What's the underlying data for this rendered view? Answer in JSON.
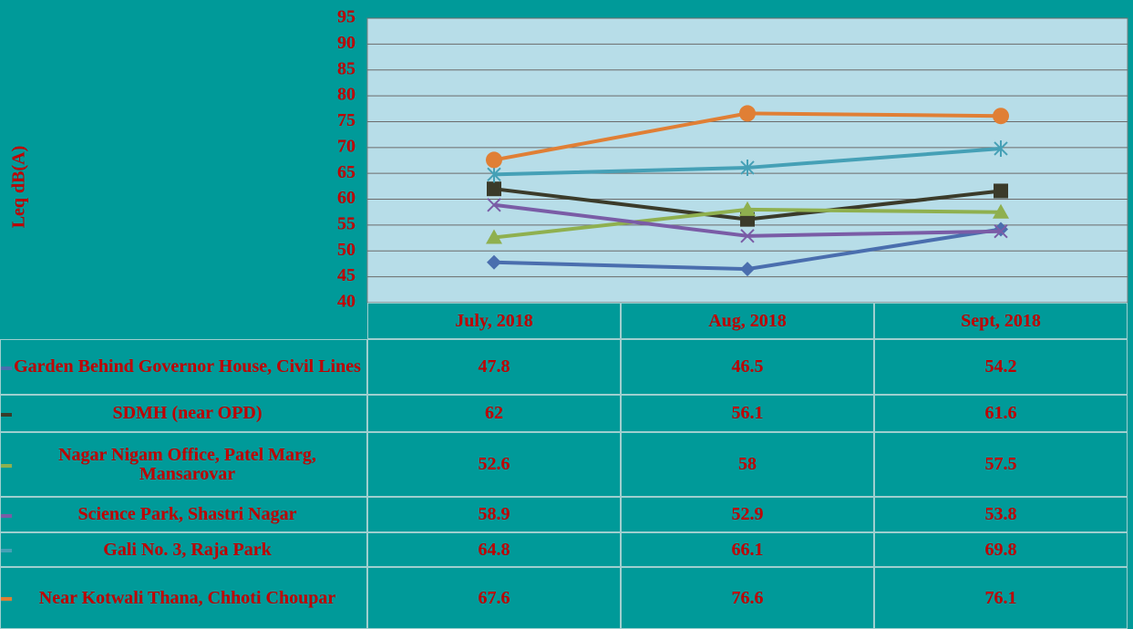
{
  "chart_data": {
    "type": "line",
    "y_label": "Leq dB(A)",
    "categories": [
      "July, 2018",
      "Aug, 2018",
      "Sept, 2018"
    ],
    "ylim": [
      40,
      95
    ],
    "yticks": [
      40,
      45,
      50,
      55,
      60,
      65,
      70,
      75,
      80,
      85,
      90,
      95
    ],
    "grid": true,
    "series": [
      {
        "name": "Garden Behind Governor House, Civil Lines",
        "color": "#4a6eae",
        "marker": "diamond",
        "values": [
          47.8,
          46.5,
          54.2
        ]
      },
      {
        "name": "SDMH (near OPD)",
        "color": "#3b3b2a",
        "marker": "square",
        "values": [
          62,
          56.1,
          61.6
        ]
      },
      {
        "name": "Nagar Nigam Office, Patel Marg, Mansarovar",
        "color": "#8fb04f",
        "marker": "triangle",
        "values": [
          52.6,
          58,
          57.5
        ]
      },
      {
        "name": "Science Park, Shastri Nagar",
        "color": "#7a5ca6",
        "marker": "x",
        "values": [
          58.9,
          52.9,
          53.8
        ]
      },
      {
        "name": "Gali No. 3, Raja Park",
        "color": "#45a0b6",
        "marker": "star",
        "values": [
          64.8,
          66.1,
          69.8
        ]
      },
      {
        "name": "Near Kotwali Thana, Chhoti Choupar",
        "color": "#e07f35",
        "marker": "circle",
        "values": [
          67.6,
          76.6,
          76.1
        ]
      }
    ]
  }
}
